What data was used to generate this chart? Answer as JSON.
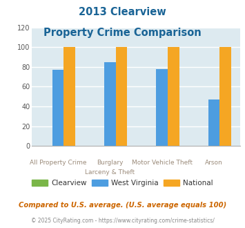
{
  "title_line1": "2013 Clearview",
  "title_line2": "Property Crime Comparison",
  "clearview": [
    0,
    0,
    0,
    0
  ],
  "west_virginia": [
    77,
    85,
    78,
    47
  ],
  "national": [
    100,
    100,
    100,
    100
  ],
  "bar_color_clearview": "#7ab648",
  "bar_color_wv": "#4d9de0",
  "bar_color_national": "#f5a623",
  "ylim": [
    0,
    120
  ],
  "yticks": [
    0,
    20,
    40,
    60,
    80,
    100,
    120
  ],
  "bg_color": "#ddeaf0",
  "grid_color": "#ffffff",
  "title_color": "#1a6496",
  "xlabel_color": "#9b8b7a",
  "legend_label_clearview": "Clearview",
  "legend_label_wv": "West Virginia",
  "legend_label_national": "National",
  "footnote1": "Compared to U.S. average. (U.S. average equals 100)",
  "footnote2": "© 2025 CityRating.com - https://www.cityrating.com/crime-statistics/",
  "footnote1_color": "#cc6600",
  "footnote2_color": "#888888",
  "cats_top": [
    "",
    "Burglary",
    "Motor Vehicle Theft",
    ""
  ],
  "cats_bottom": [
    "All Property Crime",
    "Larceny & Theft",
    "",
    "Arson"
  ]
}
